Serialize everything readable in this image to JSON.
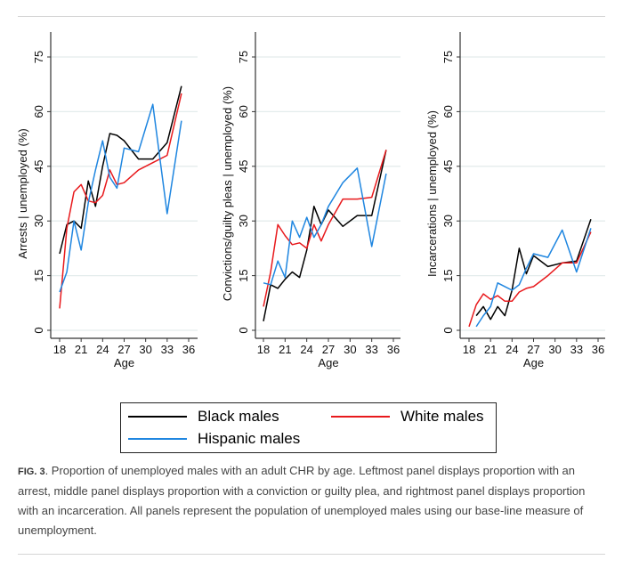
{
  "chart_data": [
    {
      "type": "line",
      "ylabel": "Arrests | unemployed (%)",
      "xlabel": "Age",
      "xlim": [
        18,
        36
      ],
      "ylim": [
        0,
        75
      ],
      "xticks": [
        "18",
        "21",
        "24",
        "27",
        "30",
        "33",
        "36"
      ],
      "yticks": [
        "0",
        "15",
        "30",
        "45",
        "60",
        "75"
      ],
      "grid": true,
      "series": [
        {
          "name": "Black males",
          "x": [
            18,
            19,
            20,
            21,
            22,
            23,
            24,
            25,
            26,
            27,
            29,
            31,
            33,
            35
          ],
          "values": [
            21,
            29,
            30,
            28,
            41,
            34,
            45,
            54,
            53.5,
            52,
            47,
            47,
            51.5,
            67
          ]
        },
        {
          "name": "White males",
          "x": [
            18,
            19,
            20,
            21,
            22,
            23,
            24,
            25,
            26,
            27,
            29,
            31,
            33,
            35
          ],
          "values": [
            6,
            28,
            38,
            40,
            35.5,
            35,
            37,
            44,
            40,
            40.5,
            44,
            46,
            48,
            65
          ]
        },
        {
          "name": "Hispanic males",
          "x": [
            18,
            19,
            20,
            21,
            22,
            23,
            24,
            25,
            26,
            27,
            29,
            31,
            33,
            35
          ],
          "values": [
            10.5,
            16,
            30,
            22,
            35,
            44,
            52,
            42,
            39,
            50,
            49,
            62,
            32,
            57.5
          ]
        }
      ]
    },
    {
      "type": "line",
      "ylabel": "Convictions/guilty pleas | unemployed (%)",
      "xlabel": "Age",
      "xlim": [
        18,
        36
      ],
      "ylim": [
        0,
        75
      ],
      "xticks": [
        "18",
        "21",
        "24",
        "27",
        "30",
        "33",
        "36"
      ],
      "yticks": [
        "0",
        "15",
        "30",
        "45",
        "60",
        "75"
      ],
      "grid": true,
      "series": [
        {
          "name": "Black males",
          "x": [
            18,
            19,
            20,
            21,
            22,
            23,
            24,
            25,
            26,
            27,
            29,
            31,
            33,
            35
          ],
          "values": [
            2.5,
            12.5,
            11.5,
            14,
            16,
            14.5,
            22,
            34,
            29,
            33,
            28.5,
            31.5,
            31.5,
            49.5
          ]
        },
        {
          "name": "White males",
          "x": [
            18,
            19,
            20,
            21,
            22,
            23,
            24,
            25,
            26,
            27,
            29,
            31,
            33,
            35
          ],
          "values": [
            6.5,
            16,
            29,
            26,
            23.5,
            24,
            22.5,
            29,
            24.5,
            29,
            36,
            36,
            36.5,
            49.5
          ]
        },
        {
          "name": "Hispanic males",
          "x": [
            18,
            19,
            20,
            21,
            22,
            23,
            24,
            25,
            26,
            27,
            29,
            31,
            33,
            35
          ],
          "values": [
            13,
            12.5,
            19,
            14.5,
            30,
            25.5,
            31,
            25.5,
            29,
            34,
            40.5,
            44.5,
            23,
            43
          ]
        }
      ]
    },
    {
      "type": "line",
      "ylabel": "Incarcerations | unemployed (%)",
      "xlabel": "Age",
      "xlim": [
        18,
        36
      ],
      "ylim": [
        0,
        75
      ],
      "xticks": [
        "18",
        "21",
        "24",
        "27",
        "30",
        "33",
        "36"
      ],
      "yticks": [
        "0",
        "15",
        "30",
        "45",
        "60",
        "75"
      ],
      "grid": true,
      "series": [
        {
          "name": "Black males",
          "x": [
            19,
            20,
            21,
            22,
            23,
            24,
            25,
            26,
            27,
            29,
            31,
            33,
            35
          ],
          "values": [
            4,
            6.5,
            3,
            6.5,
            4,
            11,
            22.5,
            15.5,
            20.5,
            17.5,
            18.5,
            19,
            30.5
          ]
        },
        {
          "name": "White males",
          "x": [
            18,
            19,
            20,
            21,
            22,
            23,
            24,
            25,
            26,
            27,
            29,
            31,
            33,
            35
          ],
          "values": [
            1,
            7,
            10,
            8.5,
            9.5,
            8,
            8,
            10.5,
            11.5,
            12,
            15,
            18.5,
            18.5,
            27
          ]
        },
        {
          "name": "Hispanic males",
          "x": [
            19,
            20,
            21,
            22,
            23,
            24,
            25,
            26,
            27,
            29,
            31,
            33,
            35
          ],
          "values": [
            1,
            4,
            6.5,
            13,
            12,
            11,
            12.5,
            17,
            21,
            20,
            27.5,
            16,
            28
          ]
        }
      ]
    }
  ],
  "legend": {
    "placement": "bottom",
    "items": [
      {
        "label": "Black males",
        "color": "#000000"
      },
      {
        "label": "White males",
        "color": "#e8191c"
      },
      {
        "label": "Hispanic males",
        "color": "#1f86e0"
      }
    ]
  },
  "caption": {
    "label": "FIG. 3",
    "text": ". Proportion of unemployed males with an adult CHR by age. Leftmost panel displays proportion with an arrest, middle panel displays proportion with a conviction or guilty plea, and rightmost panel displays proportion with an incarceration. All panels represent the population of unemployed males using our base-line measure of unemployment."
  }
}
